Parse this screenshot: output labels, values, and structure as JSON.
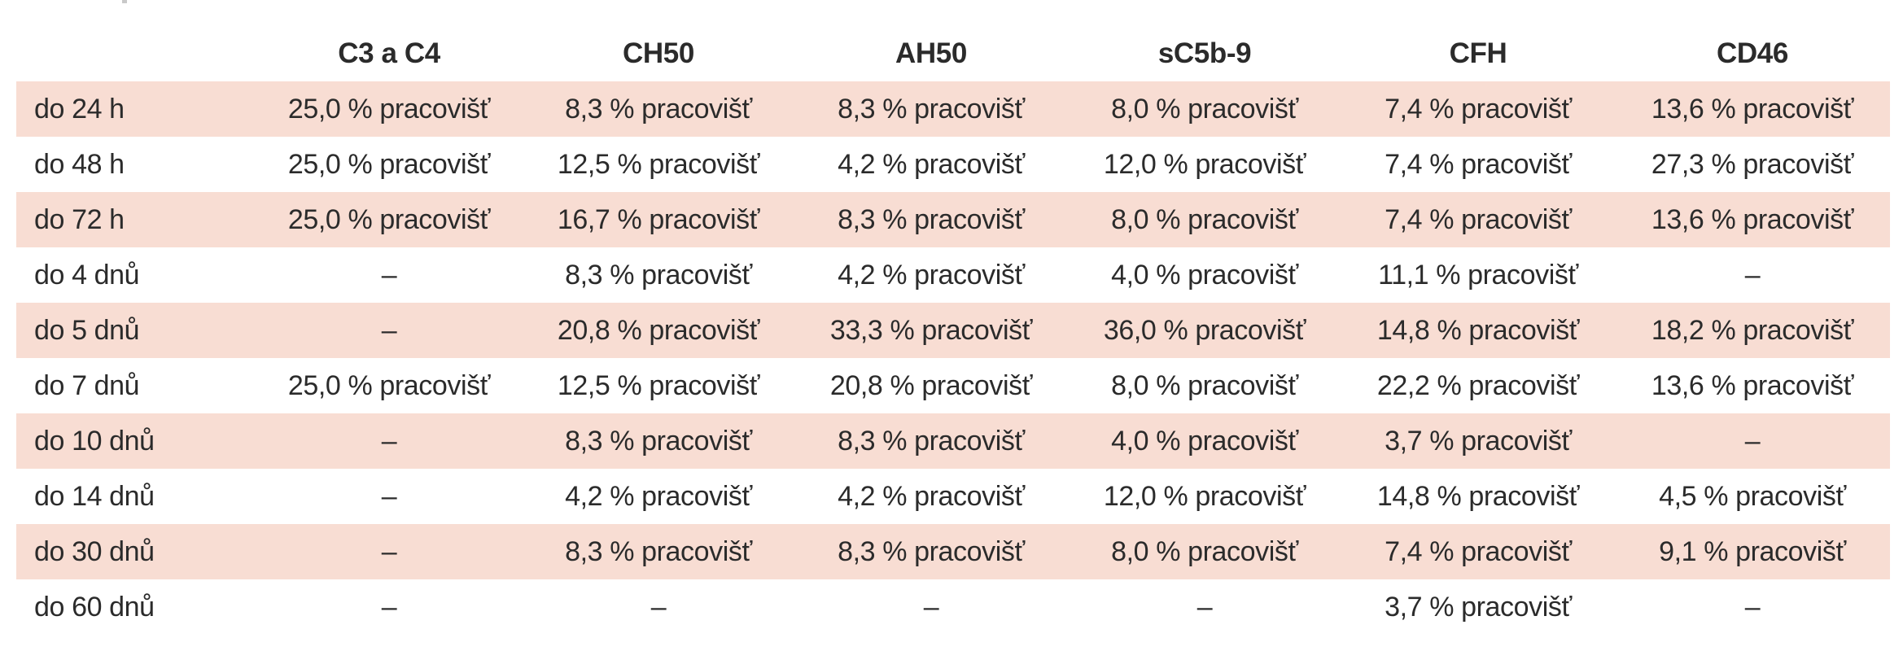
{
  "table": {
    "headers": [
      "",
      "C3 a C4",
      "CH50",
      "AH50",
      "sC5b-9",
      "CFH",
      "CD46"
    ],
    "rows": [
      [
        "do 24 h",
        "25,0 % pracovišť",
        "8,3 % pracovišť",
        "8,3 % pracovišť",
        "8,0 % pracovišť",
        "7,4 % pracovišť",
        "13,6 % pracovišť"
      ],
      [
        "do 48 h",
        "25,0 % pracovišť",
        "12,5 % pracovišť",
        "4,2 % pracovišť",
        "12,0 % pracovišť",
        "7,4 % pracovišť",
        "27,3 % pracovišť"
      ],
      [
        "do 72 h",
        "25,0 % pracovišť",
        "16,7 % pracovišť",
        "8,3 % pracovišť",
        "8,0 % pracovišť",
        "7,4 % pracovišť",
        "13,6 % pracovišť"
      ],
      [
        "do 4 dnů",
        "–",
        "8,3 % pracovišť",
        "4,2 % pracovišť",
        "4,0 % pracovišť",
        "11,1 % pracovišť",
        "–"
      ],
      [
        "do 5 dnů",
        "–",
        "20,8 % pracovišť",
        "33,3 % pracovišť",
        "36,0 % pracovišť",
        "14,8 % pracovišť",
        "18,2 % pracovišť"
      ],
      [
        "do 7 dnů",
        "25,0 % pracovišť",
        "12,5 % pracovišť",
        "20,8 % pracovišť",
        "8,0 % pracovišť",
        "22,2 % pracovišť",
        "13,6 % pracovišť"
      ],
      [
        "do 10 dnů",
        "–",
        "8,3 % pracovišť",
        "8,3 % pracovišť",
        "4,0 % pracovišť",
        "3,7 % pracovišť",
        "–"
      ],
      [
        "do 14 dnů",
        "–",
        "4,2 % pracovišť",
        "4,2 % pracovišť",
        "12,0 % pracovišť",
        "14,8 % pracovišť",
        "4,5 % pracovišť"
      ],
      [
        "do 30 dnů",
        "–",
        "8,3 % pracovišť",
        "8,3 % pracovišť",
        "8,0 % pracovišť",
        "7,4 % pracovišť",
        "9,1 % pracovišť"
      ],
      [
        "do 60 dnů",
        "–",
        "–",
        "–",
        "–",
        "3,7 % pracovišť",
        "–"
      ]
    ]
  },
  "colors": {
    "shaded_row": "#f8ddd3",
    "text": "#2b2b2b"
  }
}
